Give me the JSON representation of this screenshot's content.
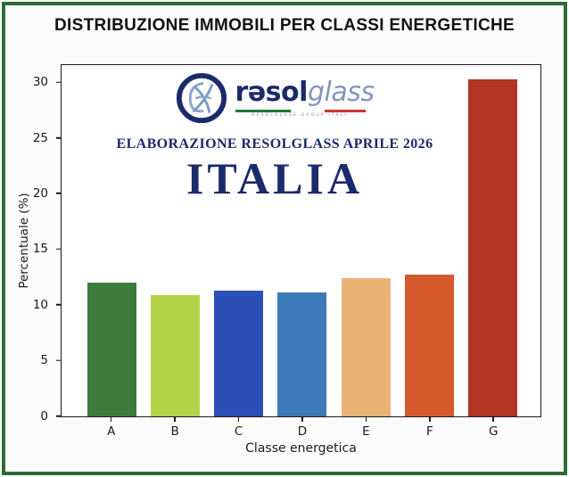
{
  "page": {
    "title": "DISTRIBUZIONE IMMOBILI PER CLASSI ENERGETICHE"
  },
  "branding": {
    "logo_text_bold": "rəsol",
    "logo_text_light": "glass",
    "logo_tagline": "RESOLGLASS  GROUP  ITALY",
    "subtitle": "ELABORAZIONE RESOLGLASS APRILE 2026",
    "country": "ITALIA",
    "navy": "#1b2a6b",
    "light_blue": "#8195bd",
    "flag_green": "#1e7a34",
    "flag_red": "#c8372d"
  },
  "frame": {
    "border_color": "#2e6b34"
  },
  "chart_data": {
    "type": "bar",
    "title": "DISTRIBUZIONE IMMOBILI PER CLASSI ENERGETICHE",
    "categories": [
      "A",
      "B",
      "C",
      "D",
      "E",
      "F",
      "G"
    ],
    "values": [
      12.0,
      10.9,
      11.3,
      11.1,
      12.4,
      12.7,
      30.2
    ],
    "colors": [
      "#3d7c3c",
      "#b5d44c",
      "#2b4fb4",
      "#3d7ab8",
      "#eab376",
      "#d45a2e",
      "#b13425"
    ],
    "xlabel": "Classe energetica",
    "ylabel": "Percentuale (%)",
    "ylim": [
      0,
      31.5
    ],
    "yticks": [
      0,
      5,
      10,
      15,
      20,
      25,
      30
    ],
    "grid": false,
    "legend": null
  }
}
